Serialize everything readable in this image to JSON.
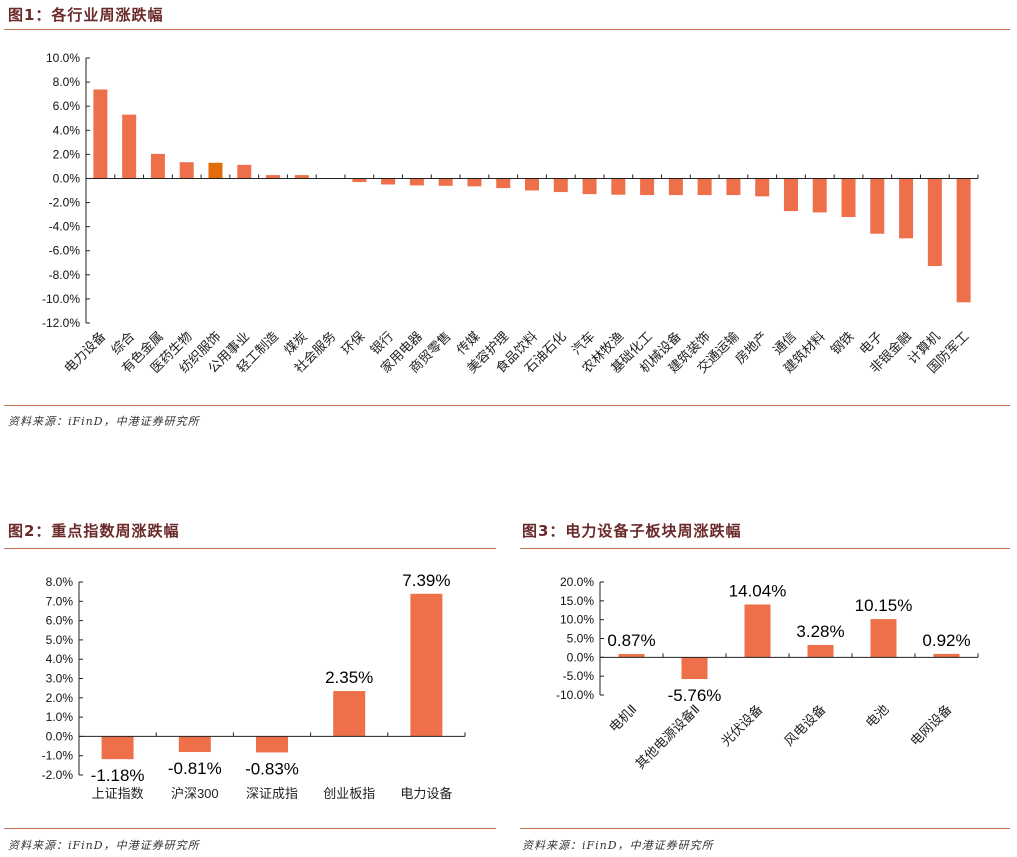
{
  "figure1": {
    "title": "图1：各行业周涨跌幅",
    "source": "资料来源：iFinD，中港证券研究所"
  },
  "figure2": {
    "title": "图2：重点指数周涨跌幅",
    "source": "资料来源：iFinD，中港证券研究所"
  },
  "figure3": {
    "title": "图3：电力设备子板块周涨跌幅",
    "source": "资料来源：iFinD，中港证券研究所"
  },
  "colors": {
    "bar": "#ee704b",
    "highlight": "#e36c0a",
    "title": "#6b2a2a",
    "rule": "#c5704e"
  },
  "chart_data": [
    {
      "type": "bar",
      "title": "各行业周涨跌幅",
      "categories": [
        "电力设备",
        "综合",
        "有色金属",
        "医药生物",
        "纺织服饰",
        "公用事业",
        "轻工制造",
        "煤炭",
        "社会服务",
        "环保",
        "银行",
        "家用电器",
        "商贸零售",
        "传媒",
        "美容护理",
        "食品饮料",
        "石油石化",
        "汽车",
        "农林牧渔",
        "基础化工",
        "机械设备",
        "建筑装饰",
        "交通运输",
        "房地产",
        "通信",
        "建筑材料",
        "钢铁",
        "电子",
        "非银金融",
        "计算机",
        "国防军工"
      ],
      "values": [
        7.39,
        5.3,
        2.04,
        1.35,
        1.3,
        1.13,
        0.28,
        0.28,
        0.0,
        -0.3,
        -0.5,
        -0.58,
        -0.61,
        -0.66,
        -0.8,
        -1.0,
        -1.13,
        -1.3,
        -1.35,
        -1.38,
        -1.38,
        -1.38,
        -1.38,
        -1.49,
        -2.71,
        -2.82,
        -3.2,
        -4.59,
        -4.97,
        -7.27,
        -10.28
      ],
      "highlight_index": 4,
      "yticks": [
        "10.0%",
        "8.0%",
        "6.0%",
        "4.0%",
        "2.0%",
        "0.0%",
        "-2.0%",
        "-4.0%",
        "-6.0%",
        "-8.0%",
        "-10.0%",
        "-12.0%"
      ],
      "ylim": [
        -12,
        10
      ],
      "unit": "%"
    },
    {
      "type": "bar",
      "title": "重点指数周涨跌幅",
      "categories": [
        "上证指数",
        "沪深300",
        "深证成指",
        "创业板指",
        "电力设备"
      ],
      "values": [
        -1.18,
        -0.81,
        -0.83,
        2.35,
        7.39
      ],
      "data_labels": [
        "-1.18%",
        "-0.81%",
        "-0.83%",
        "2.35%",
        "7.39%"
      ],
      "yticks": [
        "8.0%",
        "7.0%",
        "6.0%",
        "5.0%",
        "4.0%",
        "3.0%",
        "2.0%",
        "1.0%",
        "0.0%",
        "-1.0%",
        "-2.0%"
      ],
      "ylim": [
        -2,
        8
      ],
      "unit": "%"
    },
    {
      "type": "bar",
      "title": "电力设备子板块周涨跌幅",
      "categories": [
        "电机Ⅱ",
        "其他电源设备Ⅱ",
        "光伏设备",
        "风电设备",
        "电池",
        "电网设备"
      ],
      "values": [
        0.87,
        -5.76,
        14.04,
        3.28,
        10.15,
        0.92
      ],
      "data_labels": [
        "0.87%",
        "-5.76%",
        "14.04%",
        "3.28%",
        "10.15%",
        "0.92%"
      ],
      "yticks": [
        "20.0%",
        "15.0%",
        "10.0%",
        "5.0%",
        "0.0%",
        "-5.0%",
        "-10.0%"
      ],
      "ylim": [
        -10,
        20
      ],
      "unit": "%"
    }
  ]
}
